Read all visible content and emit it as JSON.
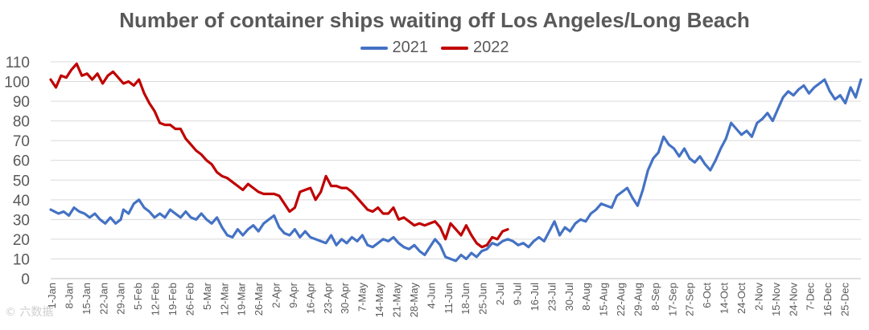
{
  "chart_data": {
    "type": "line",
    "title": "Number of container ships waiting off Los Angeles/Long Beach",
    "xlabel": "",
    "ylabel": "",
    "ylim": [
      0,
      110
    ],
    "yticks": [
      0,
      10,
      20,
      30,
      40,
      50,
      60,
      70,
      80,
      90,
      100,
      110
    ],
    "grid": true,
    "legend_position": "top-center",
    "x_tick_labels": [
      "1-Jan",
      "8-Jan",
      "15-Jan",
      "22-Jan",
      "29-Jan",
      "5-Feb",
      "12-Feb",
      "19-Feb",
      "26-Feb",
      "5-Mar",
      "12-Mar",
      "19-Mar",
      "26-Mar",
      "2-Apr",
      "9-Apr",
      "16-Apr",
      "23-Apr",
      "30-Apr",
      "7-May",
      "14-May",
      "21-May",
      "28-May",
      "4-Jun",
      "11-Jun",
      "18-Jun",
      "25-Jun",
      "2-Jul",
      "9-Jul",
      "16-Jul",
      "23-Jul",
      "30-Jul",
      "8-Aug",
      "15-Aug",
      "22-Aug",
      "29-Aug",
      "8-Sep",
      "17-Sep",
      "27-Sep",
      "6-Oct",
      "14-Oct",
      "24-Oct",
      "2-Nov",
      "15-Nov",
      "24-Nov",
      "7-Dec",
      "16-Dec",
      "25-Dec"
    ],
    "series": [
      {
        "name": "2021",
        "color": "#4472C4",
        "points": [
          [
            0,
            35
          ],
          [
            3,
            33
          ],
          [
            5,
            34
          ],
          [
            7,
            32
          ],
          [
            9,
            36
          ],
          [
            11,
            34
          ],
          [
            13,
            33
          ],
          [
            15,
            31
          ],
          [
            17,
            33
          ],
          [
            19,
            30
          ],
          [
            21,
            28
          ],
          [
            23,
            31
          ],
          [
            25,
            28
          ],
          [
            27,
            30
          ],
          [
            28,
            35
          ],
          [
            30,
            33
          ],
          [
            32,
            38
          ],
          [
            34,
            40
          ],
          [
            36,
            36
          ],
          [
            38,
            34
          ],
          [
            40,
            31
          ],
          [
            42,
            33
          ],
          [
            44,
            31
          ],
          [
            46,
            35
          ],
          [
            48,
            33
          ],
          [
            50,
            31
          ],
          [
            52,
            34
          ],
          [
            54,
            31
          ],
          [
            56,
            30
          ],
          [
            58,
            33
          ],
          [
            60,
            30
          ],
          [
            62,
            28
          ],
          [
            64,
            31
          ],
          [
            66,
            26
          ],
          [
            68,
            22
          ],
          [
            70,
            21
          ],
          [
            72,
            25
          ],
          [
            74,
            22
          ],
          [
            76,
            25
          ],
          [
            78,
            27
          ],
          [
            80,
            24
          ],
          [
            82,
            28
          ],
          [
            84,
            30
          ],
          [
            86,
            32
          ],
          [
            88,
            26
          ],
          [
            90,
            23
          ],
          [
            92,
            22
          ],
          [
            94,
            25
          ],
          [
            96,
            21
          ],
          [
            98,
            24
          ],
          [
            100,
            21
          ],
          [
            102,
            20
          ],
          [
            104,
            19
          ],
          [
            106,
            18
          ],
          [
            108,
            22
          ],
          [
            110,
            17
          ],
          [
            112,
            20
          ],
          [
            114,
            18
          ],
          [
            116,
            21
          ],
          [
            118,
            19
          ],
          [
            120,
            22
          ],
          [
            122,
            17
          ],
          [
            124,
            16
          ],
          [
            126,
            18
          ],
          [
            128,
            20
          ],
          [
            130,
            19
          ],
          [
            132,
            21
          ],
          [
            134,
            18
          ],
          [
            136,
            16
          ],
          [
            138,
            15
          ],
          [
            140,
            17
          ],
          [
            142,
            14
          ],
          [
            144,
            12
          ],
          [
            146,
            16
          ],
          [
            148,
            20
          ],
          [
            150,
            17
          ],
          [
            152,
            11
          ],
          [
            154,
            10
          ],
          [
            156,
            9
          ],
          [
            158,
            12
          ],
          [
            160,
            10
          ],
          [
            162,
            13
          ],
          [
            164,
            11
          ],
          [
            166,
            14
          ],
          [
            168,
            15
          ],
          [
            170,
            18
          ],
          [
            172,
            17
          ],
          [
            174,
            19
          ],
          [
            176,
            20
          ],
          [
            178,
            19
          ],
          [
            180,
            17
          ],
          [
            182,
            18
          ],
          [
            184,
            16
          ],
          [
            186,
            19
          ],
          [
            188,
            21
          ],
          [
            190,
            19
          ],
          [
            192,
            24
          ],
          [
            194,
            29
          ],
          [
            196,
            22
          ],
          [
            198,
            26
          ],
          [
            200,
            24
          ],
          [
            202,
            28
          ],
          [
            204,
            30
          ],
          [
            206,
            29
          ],
          [
            208,
            33
          ],
          [
            210,
            35
          ],
          [
            212,
            38
          ],
          [
            214,
            37
          ],
          [
            216,
            36
          ],
          [
            218,
            42
          ],
          [
            220,
            44
          ],
          [
            222,
            46
          ],
          [
            224,
            41
          ],
          [
            226,
            37
          ],
          [
            228,
            45
          ],
          [
            230,
            55
          ],
          [
            232,
            61
          ],
          [
            234,
            64
          ],
          [
            236,
            72
          ],
          [
            238,
            68
          ],
          [
            240,
            66
          ],
          [
            242,
            62
          ],
          [
            244,
            66
          ],
          [
            246,
            61
          ],
          [
            248,
            59
          ],
          [
            250,
            62
          ],
          [
            252,
            58
          ],
          [
            254,
            55
          ],
          [
            256,
            60
          ],
          [
            258,
            66
          ],
          [
            260,
            71
          ],
          [
            262,
            79
          ],
          [
            264,
            76
          ],
          [
            266,
            73
          ],
          [
            268,
            75
          ],
          [
            270,
            72
          ],
          [
            272,
            79
          ],
          [
            274,
            81
          ],
          [
            276,
            84
          ],
          [
            278,
            80
          ],
          [
            280,
            86
          ],
          [
            282,
            92
          ],
          [
            284,
            95
          ],
          [
            286,
            93
          ],
          [
            288,
            96
          ],
          [
            290,
            98
          ],
          [
            292,
            94
          ],
          [
            294,
            97
          ],
          [
            296,
            99
          ],
          [
            298,
            101
          ],
          [
            300,
            95
          ],
          [
            302,
            91
          ],
          [
            304,
            93
          ],
          [
            306,
            89
          ],
          [
            308,
            97
          ],
          [
            310,
            92
          ],
          [
            312,
            101
          ]
        ]
      },
      {
        "name": "2022",
        "color": "#C00000",
        "points": [
          [
            0,
            101
          ],
          [
            2,
            97
          ],
          [
            4,
            103
          ],
          [
            6,
            102
          ],
          [
            8,
            106
          ],
          [
            10,
            109
          ],
          [
            12,
            103
          ],
          [
            14,
            104
          ],
          [
            16,
            101
          ],
          [
            18,
            104
          ],
          [
            20,
            99
          ],
          [
            22,
            103
          ],
          [
            24,
            105
          ],
          [
            26,
            102
          ],
          [
            28,
            99
          ],
          [
            30,
            100
          ],
          [
            32,
            98
          ],
          [
            34,
            101
          ],
          [
            36,
            94
          ],
          [
            38,
            89
          ],
          [
            40,
            85
          ],
          [
            42,
            79
          ],
          [
            44,
            78
          ],
          [
            46,
            78
          ],
          [
            48,
            76
          ],
          [
            50,
            76
          ],
          [
            52,
            71
          ],
          [
            54,
            68
          ],
          [
            56,
            65
          ],
          [
            58,
            63
          ],
          [
            60,
            60
          ],
          [
            62,
            58
          ],
          [
            64,
            54
          ],
          [
            66,
            52
          ],
          [
            68,
            51
          ],
          [
            70,
            49
          ],
          [
            72,
            47
          ],
          [
            74,
            45
          ],
          [
            76,
            48
          ],
          [
            78,
            46
          ],
          [
            80,
            44
          ],
          [
            82,
            43
          ],
          [
            84,
            43
          ],
          [
            86,
            43
          ],
          [
            88,
            42
          ],
          [
            90,
            38
          ],
          [
            92,
            34
          ],
          [
            94,
            36
          ],
          [
            96,
            44
          ],
          [
            98,
            45
          ],
          [
            100,
            46
          ],
          [
            102,
            40
          ],
          [
            104,
            44
          ],
          [
            106,
            52
          ],
          [
            108,
            47
          ],
          [
            110,
            47
          ],
          [
            112,
            46
          ],
          [
            114,
            46
          ],
          [
            116,
            44
          ],
          [
            118,
            41
          ],
          [
            120,
            38
          ],
          [
            122,
            35
          ],
          [
            124,
            34
          ],
          [
            126,
            36
          ],
          [
            128,
            33
          ],
          [
            130,
            33
          ],
          [
            132,
            36
          ],
          [
            134,
            30
          ],
          [
            136,
            31
          ],
          [
            138,
            29
          ],
          [
            140,
            27
          ],
          [
            142,
            28
          ],
          [
            144,
            27
          ],
          [
            146,
            28
          ],
          [
            148,
            29
          ],
          [
            150,
            26
          ],
          [
            152,
            20
          ],
          [
            154,
            28
          ],
          [
            156,
            25
          ],
          [
            158,
            22
          ],
          [
            160,
            27
          ],
          [
            162,
            22
          ],
          [
            164,
            18
          ],
          [
            166,
            16
          ],
          [
            168,
            17
          ],
          [
            170,
            21
          ],
          [
            172,
            20
          ],
          [
            174,
            24
          ],
          [
            176,
            25
          ]
        ]
      }
    ]
  },
  "watermark": "© 六数据"
}
